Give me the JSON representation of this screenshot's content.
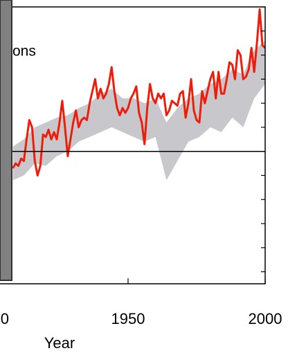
{
  "chart_data": {
    "type": "line",
    "annotation": "ons",
    "xlabel": "Year",
    "xlim": [
      1903.3,
      2000
    ],
    "ylim": [
      -0.55,
      0.6
    ],
    "xticks": [
      {
        "value": 1900,
        "label": "0"
      },
      1950,
      2000
    ],
    "yticks": [
      -0.5,
      -0.4,
      -0.3,
      -0.2,
      -0.1,
      0,
      0.1,
      0.2,
      0.3,
      0.4,
      0.5,
      0.6
    ],
    "reference_line": 0,
    "x": [
      1908,
      1909,
      1910,
      1911,
      1912,
      1913,
      1914,
      1915,
      1916,
      1917,
      1918,
      1919,
      1920,
      1921,
      1922,
      1923,
      1924,
      1925,
      1926,
      1927,
      1928,
      1929,
      1930,
      1931,
      1932,
      1933,
      1934,
      1935,
      1936,
      1937,
      1938,
      1939,
      1940,
      1941,
      1942,
      1943,
      1944,
      1945,
      1946,
      1947,
      1948,
      1949,
      1950,
      1951,
      1952,
      1953,
      1954,
      1955,
      1956,
      1957,
      1958,
      1959,
      1960,
      1961,
      1962,
      1963,
      1964,
      1965,
      1966,
      1967,
      1968,
      1969,
      1970,
      1971,
      1972,
      1973,
      1974,
      1975,
      1976,
      1977,
      1978,
      1979,
      1980,
      1981,
      1982,
      1983,
      1984,
      1985,
      1986,
      1987,
      1988,
      1989,
      1990,
      1991,
      1992,
      1993,
      1994,
      1995,
      1996,
      1997,
      1998,
      1999,
      2000
    ],
    "series": [
      {
        "color": "#f01c0a",
        "values": [
          -0.07,
          -0.05,
          -0.06,
          -0.03,
          -0.04,
          0.05,
          0.13,
          0.1,
          -0.04,
          -0.1,
          -0.06,
          0.07,
          0.06,
          0.09,
          0.05,
          0.08,
          0.05,
          0.12,
          0.21,
          0.1,
          -0.02,
          0.05,
          0.12,
          0.17,
          0.1,
          0.13,
          0.14,
          0.13,
          0.2,
          0.25,
          0.3,
          0.22,
          0.26,
          0.22,
          0.24,
          0.28,
          0.35,
          0.25,
          0.18,
          0.15,
          0.18,
          0.16,
          0.18,
          0.22,
          0.24,
          0.27,
          0.16,
          0.12,
          0.03,
          0.18,
          0.28,
          0.22,
          0.2,
          0.24,
          0.22,
          0.24,
          0.15,
          0.17,
          0.21,
          0.2,
          0.19,
          0.24,
          0.25,
          0.14,
          0.2,
          0.3,
          0.17,
          0.13,
          0.12,
          0.25,
          0.2,
          0.25,
          0.3,
          0.33,
          0.22,
          0.33,
          0.24,
          0.24,
          0.3,
          0.37,
          0.36,
          0.3,
          0.42,
          0.4,
          0.3,
          0.31,
          0.34,
          0.43,
          0.33,
          0.45,
          0.59,
          0.44,
          0.43
        ]
      }
    ],
    "band": {
      "color": "#c8c8cc",
      "x": [
        1908,
        1912,
        1916,
        1920,
        1924,
        1928,
        1932,
        1936,
        1940,
        1944,
        1948,
        1952,
        1956,
        1960,
        1964,
        1968,
        1972,
        1976,
        1980,
        1984,
        1988,
        1992,
        1996,
        2000
      ],
      "lower": [
        -0.12,
        -0.1,
        -0.05,
        -0.06,
        -0.02,
        0.0,
        0.04,
        0.06,
        0.08,
        0.1,
        0.08,
        0.06,
        0.04,
        0.06,
        -0.12,
        -0.04,
        0.04,
        0.06,
        0.1,
        0.08,
        0.14,
        0.1,
        0.22,
        0.28
      ],
      "upper": [
        0.02,
        0.05,
        0.1,
        0.12,
        0.14,
        0.15,
        0.18,
        0.2,
        0.24,
        0.26,
        0.22,
        0.22,
        0.2,
        0.22,
        0.12,
        0.18,
        0.22,
        0.24,
        0.28,
        0.3,
        0.34,
        0.32,
        0.42,
        0.46
      ]
    }
  }
}
